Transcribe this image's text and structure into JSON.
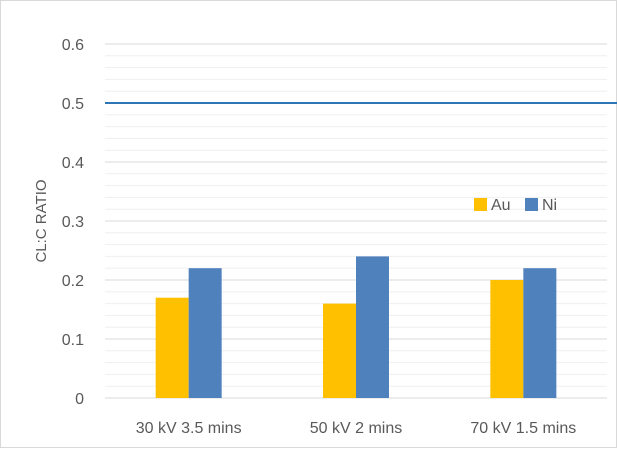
{
  "chart_data": {
    "type": "bar",
    "title": "",
    "xlabel": "",
    "ylabel": "CL:C RATIO",
    "ylim": [
      0,
      0.6
    ],
    "yticks": [
      "0",
      "0.1",
      "0.2",
      "0.3",
      "0.4",
      "0.5",
      "0.6"
    ],
    "categories": [
      "30 kV 3.5 mins",
      "50 kV 2 mins",
      "70 kV 1.5 mins"
    ],
    "series": [
      {
        "name": "Au",
        "values": [
          0.17,
          0.16,
          0.2
        ],
        "color": "#ffc000"
      },
      {
        "name": "Ni",
        "values": [
          0.22,
          0.24,
          0.22
        ],
        "color": "#4f81bd"
      }
    ],
    "reference_line": {
      "value": 0.5,
      "color": "#2e75b6"
    },
    "grid": true,
    "minor_grid": true,
    "legend_position": "right"
  }
}
